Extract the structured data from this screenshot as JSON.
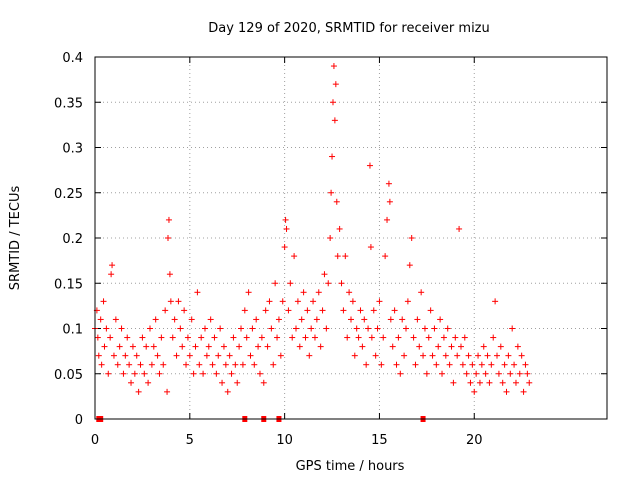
{
  "chart_data": {
    "type": "scatter",
    "title": "Day 129 of 2020, SRMTID for receiver mizu",
    "xlabel": "GPS time / hours",
    "ylabel": "SRMTID / TECUs",
    "xlim": [
      0,
      27
    ],
    "ylim": [
      0,
      0.4
    ],
    "x_ticks": [
      0,
      5,
      10,
      15,
      20
    ],
    "y_ticks": [
      0,
      0.05,
      0.1,
      0.15,
      0.2,
      0.25,
      0.3,
      0.35,
      0.4
    ],
    "x_tick_labels": [
      "0",
      "5",
      "10",
      "15",
      "20"
    ],
    "y_tick_labels": [
      "0",
      "0.05",
      "0.1",
      "0.15",
      "0.2",
      "0.25",
      "0.3",
      "0.35",
      "0.4"
    ],
    "grid": true,
    "marker": "+",
    "color": "#ff0000",
    "series": [
      {
        "name": "SRMTID",
        "points": [
          [
            0.0,
            0.1
          ],
          [
            0.1,
            0.12
          ],
          [
            0.15,
            0.09
          ],
          [
            0.2,
            0.07
          ],
          [
            0.3,
            0.11
          ],
          [
            0.35,
            0.06
          ],
          [
            0.45,
            0.13
          ],
          [
            0.5,
            0.08
          ],
          [
            0.6,
            0.1
          ],
          [
            0.7,
            0.05
          ],
          [
            0.8,
            0.09
          ],
          [
            0.85,
            0.16
          ],
          [
            0.9,
            0.17
          ],
          [
            1.0,
            0.07
          ],
          [
            1.1,
            0.11
          ],
          [
            1.2,
            0.06
          ],
          [
            1.3,
            0.08
          ],
          [
            1.4,
            0.1
          ],
          [
            1.5,
            0.05
          ],
          [
            1.6,
            0.07
          ],
          [
            1.7,
            0.09
          ],
          [
            1.8,
            0.06
          ],
          [
            1.9,
            0.04
          ],
          [
            2.0,
            0.08
          ],
          [
            2.1,
            0.05
          ],
          [
            2.2,
            0.07
          ],
          [
            2.3,
            0.03
          ],
          [
            2.4,
            0.06
          ],
          [
            2.5,
            0.09
          ],
          [
            2.6,
            0.05
          ],
          [
            2.7,
            0.08
          ],
          [
            2.8,
            0.04
          ],
          [
            2.9,
            0.1
          ],
          [
            3.0,
            0.06
          ],
          [
            3.1,
            0.08
          ],
          [
            3.2,
            0.11
          ],
          [
            3.3,
            0.07
          ],
          [
            3.4,
            0.05
          ],
          [
            3.5,
            0.09
          ],
          [
            3.6,
            0.06
          ],
          [
            3.7,
            0.12
          ],
          [
            3.8,
            0.03
          ],
          [
            3.85,
            0.2
          ],
          [
            3.9,
            0.22
          ],
          [
            3.95,
            0.16
          ],
          [
            4.0,
            0.13
          ],
          [
            4.1,
            0.09
          ],
          [
            4.2,
            0.11
          ],
          [
            4.3,
            0.07
          ],
          [
            4.4,
            0.13
          ],
          [
            4.5,
            0.1
          ],
          [
            4.6,
            0.08
          ],
          [
            4.7,
            0.12
          ],
          [
            4.8,
            0.06
          ],
          [
            4.9,
            0.09
          ],
          [
            5.0,
            0.07
          ],
          [
            5.1,
            0.11
          ],
          [
            5.2,
            0.05
          ],
          [
            5.3,
            0.08
          ],
          [
            5.4,
            0.14
          ],
          [
            5.5,
            0.06
          ],
          [
            5.6,
            0.09
          ],
          [
            5.7,
            0.05
          ],
          [
            5.8,
            0.1
          ],
          [
            5.9,
            0.07
          ],
          [
            6.0,
            0.08
          ],
          [
            6.1,
            0.11
          ],
          [
            6.2,
            0.06
          ],
          [
            6.3,
            0.09
          ],
          [
            6.4,
            0.05
          ],
          [
            6.5,
            0.07
          ],
          [
            6.6,
            0.1
          ],
          [
            6.7,
            0.04
          ],
          [
            6.8,
            0.08
          ],
          [
            6.9,
            0.06
          ],
          [
            7.0,
            0.03
          ],
          [
            7.1,
            0.07
          ],
          [
            7.2,
            0.05
          ],
          [
            7.3,
            0.09
          ],
          [
            7.4,
            0.06
          ],
          [
            7.5,
            0.04
          ],
          [
            7.6,
            0.08
          ],
          [
            7.7,
            0.1
          ],
          [
            7.8,
            0.06
          ],
          [
            7.9,
            0.12
          ],
          [
            8.0,
            0.09
          ],
          [
            8.1,
            0.14
          ],
          [
            8.2,
            0.07
          ],
          [
            8.3,
            0.1
          ],
          [
            8.4,
            0.06
          ],
          [
            8.5,
            0.11
          ],
          [
            8.6,
            0.08
          ],
          [
            8.7,
            0.05
          ],
          [
            8.8,
            0.09
          ],
          [
            8.9,
            0.04
          ],
          [
            9.0,
            0.12
          ],
          [
            9.1,
            0.08
          ],
          [
            9.2,
            0.13
          ],
          [
            9.3,
            0.1
          ],
          [
            9.4,
            0.06
          ],
          [
            9.5,
            0.15
          ],
          [
            9.6,
            0.09
          ],
          [
            9.7,
            0.11
          ],
          [
            9.8,
            0.07
          ],
          [
            9.9,
            0.13
          ],
          [
            10.0,
            0.19
          ],
          [
            10.05,
            0.22
          ],
          [
            10.1,
            0.21
          ],
          [
            10.2,
            0.12
          ],
          [
            10.3,
            0.15
          ],
          [
            10.4,
            0.09
          ],
          [
            10.5,
            0.18
          ],
          [
            10.6,
            0.1
          ],
          [
            10.7,
            0.13
          ],
          [
            10.8,
            0.08
          ],
          [
            10.9,
            0.11
          ],
          [
            11.0,
            0.14
          ],
          [
            11.1,
            0.09
          ],
          [
            11.2,
            0.12
          ],
          [
            11.3,
            0.07
          ],
          [
            11.4,
            0.1
          ],
          [
            11.5,
            0.13
          ],
          [
            11.6,
            0.09
          ],
          [
            11.7,
            0.11
          ],
          [
            11.8,
            0.14
          ],
          [
            11.9,
            0.08
          ],
          [
            12.0,
            0.12
          ],
          [
            12.1,
            0.16
          ],
          [
            12.2,
            0.1
          ],
          [
            12.3,
            0.15
          ],
          [
            12.4,
            0.2
          ],
          [
            12.45,
            0.25
          ],
          [
            12.5,
            0.29
          ],
          [
            12.55,
            0.35
          ],
          [
            12.6,
            0.39
          ],
          [
            12.65,
            0.33
          ],
          [
            12.7,
            0.37
          ],
          [
            12.75,
            0.24
          ],
          [
            12.8,
            0.18
          ],
          [
            12.9,
            0.21
          ],
          [
            13.0,
            0.15
          ],
          [
            13.1,
            0.12
          ],
          [
            13.2,
            0.18
          ],
          [
            13.3,
            0.09
          ],
          [
            13.4,
            0.14
          ],
          [
            13.5,
            0.11
          ],
          [
            13.6,
            0.13
          ],
          [
            13.7,
            0.07
          ],
          [
            13.8,
            0.1
          ],
          [
            13.9,
            0.09
          ],
          [
            14.0,
            0.12
          ],
          [
            14.1,
            0.08
          ],
          [
            14.2,
            0.11
          ],
          [
            14.3,
            0.06
          ],
          [
            14.4,
            0.1
          ],
          [
            14.5,
            0.28
          ],
          [
            14.55,
            0.19
          ],
          [
            14.6,
            0.09
          ],
          [
            14.7,
            0.12
          ],
          [
            14.8,
            0.07
          ],
          [
            14.9,
            0.1
          ],
          [
            15.0,
            0.13
          ],
          [
            15.1,
            0.06
          ],
          [
            15.2,
            0.09
          ],
          [
            15.3,
            0.18
          ],
          [
            15.4,
            0.22
          ],
          [
            15.5,
            0.26
          ],
          [
            15.55,
            0.24
          ],
          [
            15.6,
            0.11
          ],
          [
            15.7,
            0.08
          ],
          [
            15.8,
            0.12
          ],
          [
            15.9,
            0.06
          ],
          [
            16.0,
            0.09
          ],
          [
            16.1,
            0.05
          ],
          [
            16.2,
            0.11
          ],
          [
            16.3,
            0.07
          ],
          [
            16.4,
            0.1
          ],
          [
            16.5,
            0.13
          ],
          [
            16.6,
            0.17
          ],
          [
            16.7,
            0.2
          ],
          [
            16.8,
            0.09
          ],
          [
            16.9,
            0.06
          ],
          [
            17.0,
            0.11
          ],
          [
            17.1,
            0.08
          ],
          [
            17.2,
            0.14
          ],
          [
            17.3,
            0.07
          ],
          [
            17.4,
            0.1
          ],
          [
            17.5,
            0.05
          ],
          [
            17.6,
            0.09
          ],
          [
            17.7,
            0.12
          ],
          [
            17.8,
            0.07
          ],
          [
            17.9,
            0.1
          ],
          [
            18.0,
            0.06
          ],
          [
            18.1,
            0.08
          ],
          [
            18.2,
            0.11
          ],
          [
            18.3,
            0.05
          ],
          [
            18.4,
            0.09
          ],
          [
            18.5,
            0.07
          ],
          [
            18.6,
            0.1
          ],
          [
            18.7,
            0.06
          ],
          [
            18.8,
            0.08
          ],
          [
            18.9,
            0.04
          ],
          [
            19.0,
            0.09
          ],
          [
            19.1,
            0.07
          ],
          [
            19.2,
            0.21
          ],
          [
            19.3,
            0.08
          ],
          [
            19.4,
            0.06
          ],
          [
            19.5,
            0.09
          ],
          [
            19.6,
            0.05
          ],
          [
            19.7,
            0.07
          ],
          [
            19.8,
            0.04
          ],
          [
            19.9,
            0.06
          ],
          [
            20.0,
            0.03
          ],
          [
            20.1,
            0.05
          ],
          [
            20.2,
            0.07
          ],
          [
            20.3,
            0.04
          ],
          [
            20.4,
            0.06
          ],
          [
            20.5,
            0.08
          ],
          [
            20.6,
            0.05
          ],
          [
            20.7,
            0.07
          ],
          [
            20.8,
            0.04
          ],
          [
            20.9,
            0.06
          ],
          [
            21.0,
            0.09
          ],
          [
            21.1,
            0.13
          ],
          [
            21.2,
            0.07
          ],
          [
            21.3,
            0.05
          ],
          [
            21.4,
            0.08
          ],
          [
            21.5,
            0.04
          ],
          [
            21.6,
            0.06
          ],
          [
            21.7,
            0.03
          ],
          [
            21.8,
            0.07
          ],
          [
            21.9,
            0.05
          ],
          [
            22.0,
            0.1
          ],
          [
            22.1,
            0.06
          ],
          [
            22.2,
            0.04
          ],
          [
            22.3,
            0.08
          ],
          [
            22.4,
            0.05
          ],
          [
            22.5,
            0.07
          ],
          [
            22.6,
            0.03
          ],
          [
            22.7,
            0.06
          ],
          [
            22.8,
            0.05
          ],
          [
            22.9,
            0.04
          ]
        ]
      }
    ],
    "gap_markers_x": [
      0.2,
      0.3,
      7.9,
      8.9,
      9.7,
      17.3
    ]
  }
}
